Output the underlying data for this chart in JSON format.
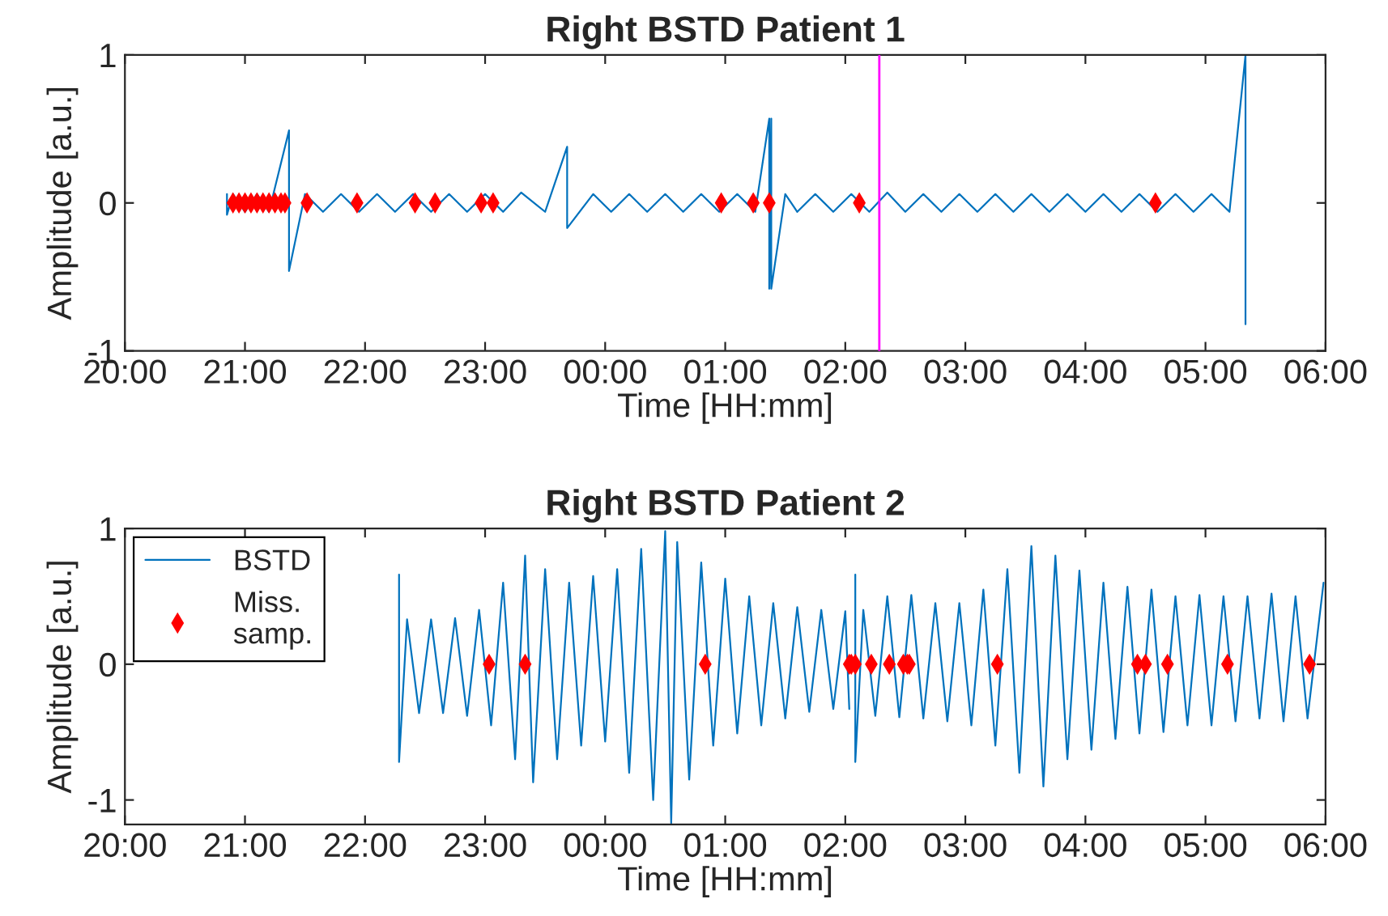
{
  "chart_data": [
    {
      "type": "line",
      "title": "Right BSTD Patient 1",
      "xlabel": "Time [HH:mm]",
      "ylabel": "Amplitude [a.u.]",
      "xlim": [
        "2000-01-01T20:00",
        "2000-01-02T06:00"
      ],
      "xticks": [
        {
          "value": "2000-01-01T20:00",
          "label": "20:00"
        },
        {
          "value": "2000-01-01T21:00",
          "label": "21:00"
        },
        {
          "value": "2000-01-01T22:00",
          "label": "22:00"
        },
        {
          "value": "2000-01-01T23:00",
          "label": "23:00"
        },
        {
          "value": "2000-01-02T00:00",
          "label": "00:00"
        },
        {
          "value": "2000-01-02T01:00",
          "label": "01:00"
        },
        {
          "value": "2000-01-02T02:00",
          "label": "02:00"
        },
        {
          "value": "2000-01-02T03:00",
          "label": "03:00"
        },
        {
          "value": "2000-01-02T04:00",
          "label": "04:00"
        },
        {
          "value": "2000-01-02T05:00",
          "label": "05:00"
        },
        {
          "value": "2000-01-02T06:00",
          "label": "06:00"
        }
      ],
      "ylim": [
        -1,
        1
      ],
      "yticks": [
        -1,
        0,
        1
      ],
      "grid": false,
      "legend": false,
      "ref_lines": [
        {
          "axis": "x",
          "value": "2000-01-02T02:17",
          "color": "#ff00ff"
        }
      ],
      "series": [
        {
          "color": "#0072bd",
          "x": [
            "2000-01-01T20:51",
            "2000-01-01T20:51",
            "2000-01-01T20:54",
            "2000-01-01T21:00",
            "2000-01-01T21:06",
            "2000-01-01T21:12",
            "2000-01-01T21:22",
            "2000-01-01T21:22",
            "2000-01-01T21:30",
            "2000-01-01T21:39",
            "2000-01-01T21:48",
            "2000-01-01T21:57",
            "2000-01-01T22:06",
            "2000-01-01T22:15",
            "2000-01-01T22:24",
            "2000-01-01T22:33",
            "2000-01-01T22:42",
            "2000-01-01T22:51",
            "2000-01-01T23:00",
            "2000-01-01T23:09",
            "2000-01-01T23:18",
            "2000-01-01T23:30",
            "2000-01-01T23:41",
            "2000-01-01T23:41",
            "2000-01-01T23:54",
            "2000-01-02T00:03",
            "2000-01-02T00:12",
            "2000-01-02T00:21",
            "2000-01-02T00:30",
            "2000-01-02T00:39",
            "2000-01-02T00:48",
            "2000-01-02T00:57",
            "2000-01-02T01:06",
            "2000-01-02T01:15",
            "2000-01-02T01:22",
            "2000-01-02T01:22",
            "2000-01-02T01:23",
            "2000-01-02T01:23",
            "2000-01-02T01:30",
            "2000-01-02T01:36",
            "2000-01-02T01:45",
            "2000-01-02T01:54",
            "2000-01-02T02:03",
            "2000-01-02T02:12",
            "2000-01-02T02:21",
            "2000-01-02T02:30",
            "2000-01-02T02:39",
            "2000-01-02T02:48",
            "2000-01-02T02:57",
            "2000-01-02T03:06",
            "2000-01-02T03:15",
            "2000-01-02T03:24",
            "2000-01-02T03:33",
            "2000-01-02T03:42",
            "2000-01-02T03:51",
            "2000-01-02T04:00",
            "2000-01-02T04:09",
            "2000-01-02T04:18",
            "2000-01-02T04:27",
            "2000-01-02T04:36",
            "2000-01-02T04:45",
            "2000-01-02T04:54",
            "2000-01-02T05:03",
            "2000-01-02T05:12",
            "2000-01-02T05:20",
            "2000-01-02T05:20"
          ],
          "values": [
            0.06,
            -0.08,
            0.06,
            -0.06,
            0.06,
            -0.06,
            0.49,
            -0.46,
            0.06,
            -0.06,
            0.06,
            -0.06,
            0.06,
            -0.06,
            0.06,
            -0.06,
            0.06,
            -0.06,
            0.06,
            -0.06,
            0.07,
            -0.06,
            0.38,
            -0.17,
            0.06,
            -0.06,
            0.06,
            -0.06,
            0.06,
            -0.06,
            0.06,
            -0.06,
            0.06,
            -0.06,
            0.57,
            -0.58,
            0.57,
            -0.58,
            0.06,
            -0.06,
            0.06,
            -0.06,
            0.06,
            -0.06,
            0.07,
            -0.06,
            0.06,
            -0.06,
            0.06,
            -0.06,
            0.06,
            -0.06,
            0.06,
            -0.06,
            0.06,
            -0.06,
            0.06,
            -0.06,
            0.06,
            -0.06,
            0.06,
            -0.06,
            0.06,
            -0.06,
            1.0,
            -0.82
          ]
        },
        {
          "type": "scatter",
          "color": "#ff0000",
          "marker": "diamond",
          "x": [
            "2000-01-01T20:54",
            "2000-01-01T20:57",
            "2000-01-01T21:00",
            "2000-01-01T21:03",
            "2000-01-01T21:06",
            "2000-01-01T21:09",
            "2000-01-01T21:12",
            "2000-01-01T21:15",
            "2000-01-01T21:18",
            "2000-01-01T21:20",
            "2000-01-01T21:31",
            "2000-01-01T21:56",
            "2000-01-01T22:25",
            "2000-01-01T22:35",
            "2000-01-01T22:58",
            "2000-01-01T23:04",
            "2000-01-02T00:58",
            "2000-01-02T01:14",
            "2000-01-02T01:22",
            "2000-01-02T02:07",
            "2000-01-02T04:35"
          ],
          "values": [
            0,
            0,
            0,
            0,
            0,
            0,
            0,
            0,
            0,
            0,
            0,
            0,
            0,
            0,
            0,
            0,
            0,
            0,
            0,
            0,
            0
          ]
        }
      ]
    },
    {
      "type": "line",
      "title": "Right BSTD Patient 2",
      "xlabel": "Time [HH:mm]",
      "ylabel": "Amplitude [a.u.]",
      "xlim": [
        "2000-01-01T20:00",
        "2000-01-02T06:00"
      ],
      "xticks": [
        {
          "value": "2000-01-01T20:00",
          "label": "20:00"
        },
        {
          "value": "2000-01-01T21:00",
          "label": "21:00"
        },
        {
          "value": "2000-01-01T22:00",
          "label": "22:00"
        },
        {
          "value": "2000-01-01T23:00",
          "label": "23:00"
        },
        {
          "value": "2000-01-02T00:00",
          "label": "00:00"
        },
        {
          "value": "2000-01-02T01:00",
          "label": "01:00"
        },
        {
          "value": "2000-01-02T02:00",
          "label": "02:00"
        },
        {
          "value": "2000-01-02T03:00",
          "label": "03:00"
        },
        {
          "value": "2000-01-02T04:00",
          "label": "04:00"
        },
        {
          "value": "2000-01-02T05:00",
          "label": "05:00"
        },
        {
          "value": "2000-01-02T06:00",
          "label": "06:00"
        }
      ],
      "ylim": [
        -1.18,
        1
      ],
      "yticks": [
        -1,
        0,
        1
      ],
      "grid": false,
      "legend": "top left",
      "series": [
        {
          "name": "BSTD",
          "color": "#0072bd",
          "x": [
            "2000-01-01T22:17",
            "2000-01-01T22:17",
            "2000-01-01T22:21",
            "2000-01-01T22:27",
            "2000-01-01T22:33",
            "2000-01-01T22:39",
            "2000-01-01T22:45",
            "2000-01-01T22:51",
            "2000-01-01T22:57",
            "2000-01-01T23:03",
            "2000-01-01T23:09",
            "2000-01-01T23:15",
            "2000-01-01T23:20",
            "2000-01-01T23:24",
            "2000-01-01T23:30",
            "2000-01-01T23:36",
            "2000-01-01T23:42",
            "2000-01-01T23:48",
            "2000-01-01T23:54",
            "2000-01-02T00:00",
            "2000-01-02T00:06",
            "2000-01-02T00:12",
            "2000-01-02T00:18",
            "2000-01-02T00:24",
            "2000-01-02T00:30",
            "2000-01-02T00:33",
            "2000-01-02T00:36",
            "2000-01-02T00:42",
            "2000-01-02T00:48",
            "2000-01-02T00:54",
            "2000-01-02T01:00",
            "2000-01-02T01:06",
            "2000-01-02T01:12",
            "2000-01-02T01:18",
            "2000-01-02T01:24",
            "2000-01-02T01:30",
            "2000-01-02T01:36",
            "2000-01-02T01:42",
            "2000-01-02T01:48",
            "2000-01-02T01:54",
            "2000-01-02T02:00",
            "2000-01-02T02:02",
            "2000-01-02T02:03",
            "2000-01-02T02:05",
            "2000-01-02T02:05",
            "2000-01-02T02:09",
            "2000-01-02T02:15",
            "2000-01-02T02:21",
            "2000-01-02T02:27",
            "2000-01-02T02:33",
            "2000-01-02T02:39",
            "2000-01-02T02:45",
            "2000-01-02T02:51",
            "2000-01-02T02:57",
            "2000-01-02T03:03",
            "2000-01-02T03:09",
            "2000-01-02T03:15",
            "2000-01-02T03:21",
            "2000-01-02T03:27",
            "2000-01-02T03:33",
            "2000-01-02T03:39",
            "2000-01-02T03:45",
            "2000-01-02T03:51",
            "2000-01-02T03:57",
            "2000-01-02T04:03",
            "2000-01-02T04:09",
            "2000-01-02T04:15",
            "2000-01-02T04:21",
            "2000-01-02T04:27",
            "2000-01-02T04:33",
            "2000-01-02T04:39",
            "2000-01-02T04:45",
            "2000-01-02T04:51",
            "2000-01-02T04:57",
            "2000-01-02T05:03",
            "2000-01-02T05:09",
            "2000-01-02T05:15",
            "2000-01-02T05:21",
            "2000-01-02T05:27",
            "2000-01-02T05:33",
            "2000-01-02T05:39",
            "2000-01-02T05:45",
            "2000-01-02T05:51",
            "2000-01-02T05:59"
          ],
          "values": [
            0.66,
            -0.72,
            0.33,
            -0.36,
            0.33,
            -0.36,
            0.34,
            -0.38,
            0.4,
            -0.45,
            0.6,
            -0.7,
            0.8,
            -0.87,
            0.7,
            -0.7,
            0.6,
            -0.6,
            0.65,
            -0.57,
            0.7,
            -0.8,
            0.85,
            -1.0,
            0.98,
            -1.17,
            0.9,
            -0.85,
            0.75,
            -0.6,
            0.63,
            -0.51,
            0.5,
            -0.45,
            0.45,
            -0.4,
            0.42,
            -0.35,
            0.4,
            -0.33,
            0.39,
            -0.33,
            null,
            0.66,
            -0.72,
            0.4,
            -0.38,
            0.5,
            -0.39,
            0.51,
            -0.4,
            0.45,
            -0.42,
            0.45,
            -0.45,
            0.55,
            -0.6,
            0.7,
            -0.8,
            0.87,
            -0.9,
            0.8,
            -0.7,
            0.69,
            -0.63,
            0.6,
            -0.55,
            0.57,
            -0.51,
            0.55,
            -0.5,
            0.5,
            -0.45,
            0.51,
            -0.45,
            0.5,
            -0.42,
            0.5,
            -0.4,
            0.52,
            -0.42,
            0.5,
            -0.4,
            0.6
          ]
        },
        {
          "type": "scatter",
          "name": "Miss.\nsamp.",
          "color": "#ff0000",
          "marker": "diamond",
          "x": [
            "2000-01-01T23:02",
            "2000-01-01T23:20",
            "2000-01-02T00:50",
            "2000-01-02T02:02",
            "2000-01-02T02:03",
            "2000-01-02T02:05",
            "2000-01-02T02:13",
            "2000-01-02T02:22",
            "2000-01-02T02:29",
            "2000-01-02T02:31",
            "2000-01-02T02:32",
            "2000-01-02T03:16",
            "2000-01-02T04:26",
            "2000-01-02T04:30",
            "2000-01-02T04:41",
            "2000-01-02T05:11",
            "2000-01-02T05:52"
          ],
          "values": [
            0,
            0,
            0,
            0,
            0,
            0,
            0,
            0,
            0,
            0,
            0,
            0,
            0,
            0,
            0,
            0,
            0
          ]
        }
      ]
    }
  ]
}
